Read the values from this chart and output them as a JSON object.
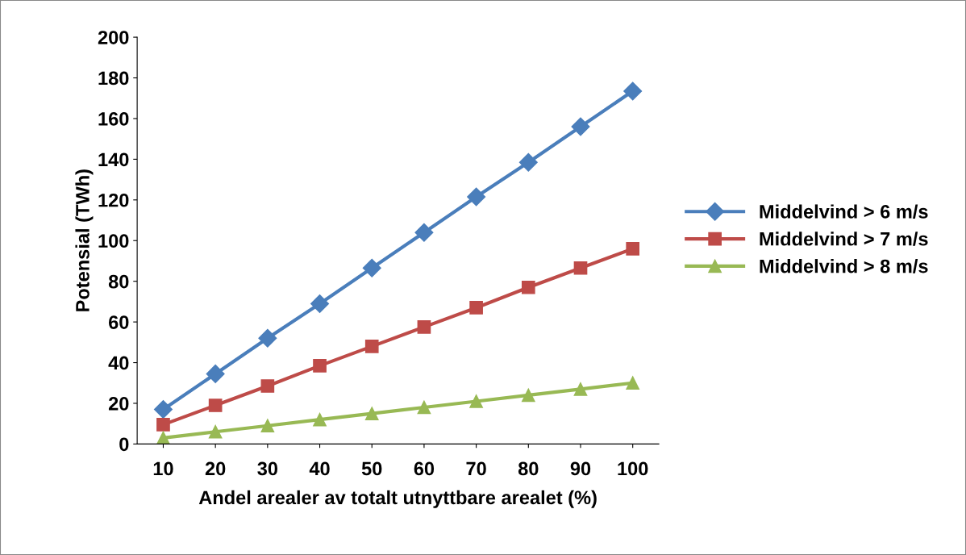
{
  "chart_data": {
    "type": "line",
    "xlabel": "Andel arealer av totalt utnyttbare arealet (%)",
    "ylabel": "Potensial (TWh)",
    "categories": [
      "10",
      "20",
      "30",
      "40",
      "50",
      "60",
      "70",
      "80",
      "90",
      "100"
    ],
    "series": [
      {
        "name": "Middelvind > 6 m/s",
        "color": "#4a7ebb",
        "marker": "diamond",
        "values": [
          17,
          34.5,
          52,
          69,
          86.5,
          104,
          121.5,
          138.5,
          156,
          173.5
        ]
      },
      {
        "name": "Middelvind > 7 m/s",
        "color": "#be4b48",
        "marker": "square",
        "values": [
          9.5,
          19,
          28.5,
          38.5,
          48,
          57.5,
          67,
          77,
          86.5,
          96
        ]
      },
      {
        "name": "Middelvind > 8 m/s",
        "color": "#98b954",
        "marker": "triangle",
        "values": [
          3,
          6,
          9,
          12,
          15,
          18,
          21,
          24,
          27,
          30
        ]
      }
    ],
    "ylim": [
      0,
      200
    ],
    "yticks": [
      0,
      20,
      40,
      60,
      80,
      100,
      120,
      140,
      160,
      180,
      200
    ],
    "grid": false,
    "legend": "right",
    "line_style": "solid"
  }
}
